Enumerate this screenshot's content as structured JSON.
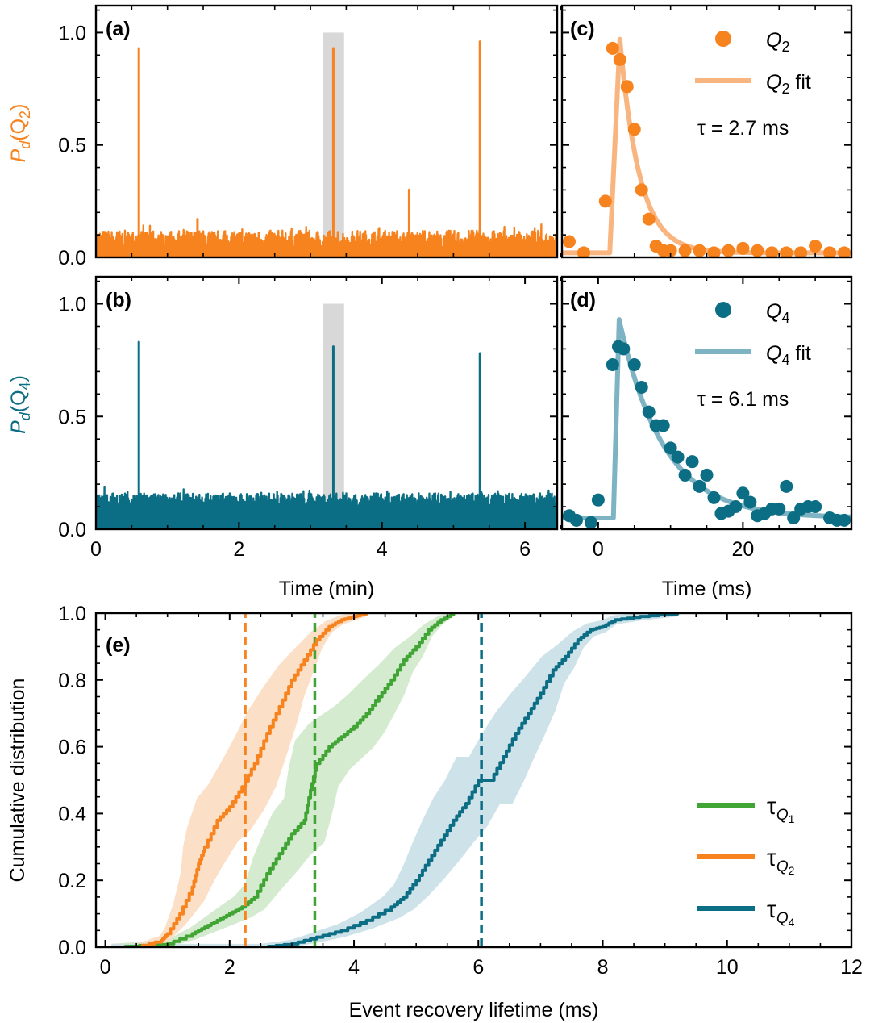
{
  "colors": {
    "orange": "#f7831f",
    "orange_fit": "#f9b57f",
    "orange_band": "#fcd9bd",
    "teal": "#0c6e84",
    "teal_fit": "#7eb3c3",
    "teal_band": "#c5dde5",
    "green": "#41a535",
    "green_band": "#cce8c7",
    "gray_band": "#d8d8d8",
    "axis": "#000000"
  },
  "chart_data": [
    {
      "id": "a",
      "type": "line",
      "panel_label": "(a)",
      "ylabel_main": "P",
      "ylabel_sub": "d",
      "ylabel_arg": "(Q",
      "ylabel_arg_sub": "2",
      "ylabel_close": ")",
      "xlim": [
        0,
        6.45
      ],
      "ylim": [
        0,
        1.12
      ],
      "yticks": [
        "0.0",
        "0.5",
        "1.0"
      ],
      "ytick_values": [
        0,
        0.5,
        1.0
      ],
      "baseline_level": [
        0.04,
        0.12
      ],
      "spikes": [
        [
          0.6,
          0.93
        ],
        [
          1.42,
          0.17
        ],
        [
          3.32,
          0.93
        ],
        [
          4.38,
          0.3
        ],
        [
          5.37,
          0.96
        ]
      ],
      "highlight_band": [
        3.17,
        3.47
      ]
    },
    {
      "id": "b",
      "type": "line",
      "panel_label": "(b)",
      "ylabel_main": "P",
      "ylabel_sub": "d",
      "ylabel_arg": "(Q",
      "ylabel_arg_sub": "4",
      "ylabel_close": ")",
      "xlim": [
        0,
        6.45
      ],
      "ylim": [
        0,
        1.12
      ],
      "xticks": [
        "0",
        "2",
        "4",
        "6"
      ],
      "xtick_values": [
        0,
        2,
        4,
        6
      ],
      "yticks": [
        "0.0",
        "0.5",
        "1.0"
      ],
      "ytick_values": [
        0,
        0.5,
        1.0
      ],
      "xlabel": "Time (min)",
      "baseline_level": [
        0.1,
        0.16
      ],
      "spikes": [
        [
          0.6,
          0.83
        ],
        [
          3.32,
          0.81
        ],
        [
          5.37,
          0.78
        ]
      ],
      "highlight_band": [
        3.17,
        3.47
      ]
    },
    {
      "id": "c",
      "type": "scatter",
      "panel_label": "(c)",
      "xlim": [
        -5,
        35
      ],
      "ylim": [
        0,
        1.12
      ],
      "legend_marker_label": "Q",
      "legend_marker_sub": "2",
      "legend_line_label": "Q",
      "legend_line_sub": "2",
      "legend_line_suffix": " fit",
      "tau_prefix": "τ = ",
      "tau_value": "2.7 ms",
      "points": [
        [
          -4,
          0.07
        ],
        [
          -2,
          0.02
        ],
        [
          1,
          0.25
        ],
        [
          2,
          0.93
        ],
        [
          3,
          0.88
        ],
        [
          4,
          0.76
        ],
        [
          5,
          0.57
        ],
        [
          6,
          0.3
        ],
        [
          7,
          0.17
        ],
        [
          8,
          0.05
        ],
        [
          9,
          0.03
        ],
        [
          10,
          0.03
        ],
        [
          12,
          0.03
        ],
        [
          14,
          0.03
        ],
        [
          16,
          0.02
        ],
        [
          18,
          0.03
        ],
        [
          20,
          0.04
        ],
        [
          22,
          0.03
        ],
        [
          24,
          0.02
        ],
        [
          26,
          0.02
        ],
        [
          28,
          0.02
        ],
        [
          30,
          0.05
        ],
        [
          32,
          0.02
        ],
        [
          34,
          0.02
        ]
      ],
      "fit": {
        "t0": 1.6,
        "peak_x": 3.0,
        "peak_y": 0.97,
        "tau": 2.7,
        "floor": 0.02
      }
    },
    {
      "id": "d",
      "type": "scatter",
      "panel_label": "(d)",
      "xlim": [
        -5,
        35
      ],
      "ylim": [
        0,
        1.12
      ],
      "xticks": [
        "0",
        "20"
      ],
      "xtick_values": [
        0,
        20
      ],
      "xlabel": "Time (ms)",
      "legend_marker_label": "Q",
      "legend_marker_sub": "4",
      "legend_line_label": "Q",
      "legend_line_sub": "4",
      "legend_line_suffix": " fit",
      "tau_prefix": "τ = ",
      "tau_value": "6.1 ms",
      "points": [
        [
          -4,
          0.06
        ],
        [
          -3,
          0.04
        ],
        [
          -1,
          0.03
        ],
        [
          0,
          0.13
        ],
        [
          2,
          0.73
        ],
        [
          2.8,
          0.81
        ],
        [
          3.5,
          0.8
        ],
        [
          5,
          0.73
        ],
        [
          6,
          0.63
        ],
        [
          7,
          0.52
        ],
        [
          8,
          0.46
        ],
        [
          9,
          0.46
        ],
        [
          10,
          0.36
        ],
        [
          11,
          0.32
        ],
        [
          12,
          0.24
        ],
        [
          13,
          0.3
        ],
        [
          14,
          0.19
        ],
        [
          15,
          0.24
        ],
        [
          16,
          0.14
        ],
        [
          17,
          0.07
        ],
        [
          18,
          0.08
        ],
        [
          19,
          0.1
        ],
        [
          20,
          0.16
        ],
        [
          21,
          0.12
        ],
        [
          22,
          0.06
        ],
        [
          23,
          0.07
        ],
        [
          24,
          0.09
        ],
        [
          25,
          0.09
        ],
        [
          26,
          0.19
        ],
        [
          27,
          0.05
        ],
        [
          28,
          0.09
        ],
        [
          29,
          0.1
        ],
        [
          30,
          0.1
        ],
        [
          32,
          0.05
        ],
        [
          33,
          0.04
        ],
        [
          34,
          0.04
        ]
      ],
      "fit": {
        "t0": 2.1,
        "peak_x": 2.9,
        "peak_y": 0.93,
        "tau": 6.1,
        "floor": 0.05
      }
    },
    {
      "id": "e",
      "type": "line",
      "panel_label": "(e)",
      "xlabel": "Event recovery lifetime (ms)",
      "ylabel": "Cumulative distribution",
      "xlim": [
        -0.15,
        12
      ],
      "ylim": [
        0,
        1.0
      ],
      "xticks": [
        "0",
        "2",
        "4",
        "6",
        "8",
        "10",
        "12"
      ],
      "xtick_values": [
        0,
        2,
        4,
        6,
        8,
        10,
        12
      ],
      "yticks": [
        "0.0",
        "0.2",
        "0.4",
        "0.6",
        "0.8",
        "1.0"
      ],
      "ytick_values": [
        0,
        0.2,
        0.4,
        0.6,
        0.8,
        1.0
      ],
      "series": [
        {
          "name": "τ",
          "sub": "Q",
          "subsub": "1",
          "color_key": "green",
          "band_key": "green_band",
          "median": 3.37,
          "x": [
            0.1,
            1.0,
            1.4,
            1.6,
            1.8,
            2.0,
            2.2,
            2.4,
            2.6,
            2.8,
            3.0,
            3.2,
            3.3,
            3.4,
            3.6,
            3.8,
            4.0,
            4.2,
            4.4,
            4.6,
            4.8,
            5.0,
            5.2,
            5.4,
            5.6
          ],
          "y": [
            0,
            0.01,
            0.04,
            0.06,
            0.08,
            0.1,
            0.12,
            0.15,
            0.22,
            0.28,
            0.34,
            0.38,
            0.47,
            0.55,
            0.6,
            0.63,
            0.66,
            0.7,
            0.75,
            0.8,
            0.86,
            0.9,
            0.95,
            0.98,
            1.0
          ]
        },
        {
          "name": "τ",
          "sub": "Q",
          "subsub": "2",
          "color_key": "orange",
          "band_key": "orange_band",
          "median": 2.25,
          "x": [
            0.1,
            0.5,
            0.9,
            1.0,
            1.2,
            1.4,
            1.5,
            1.6,
            1.8,
            2.0,
            2.2,
            2.4,
            2.6,
            2.8,
            3.0,
            3.2,
            3.4,
            3.6,
            3.8,
            4.0,
            4.2
          ],
          "y": [
            0,
            0,
            0.02,
            0.04,
            0.1,
            0.18,
            0.25,
            0.3,
            0.38,
            0.42,
            0.48,
            0.55,
            0.64,
            0.72,
            0.8,
            0.86,
            0.92,
            0.96,
            0.98,
            0.99,
            1.0
          ]
        },
        {
          "name": "τ",
          "sub": "Q",
          "subsub": "4",
          "color_key": "teal",
          "band_key": "teal_band",
          "median": 6.05,
          "x": [
            0.1,
            2.5,
            3.0,
            3.4,
            3.8,
            4.2,
            4.6,
            4.8,
            5.0,
            5.2,
            5.4,
            5.6,
            5.8,
            6.0,
            6.2,
            6.4,
            6.6,
            6.8,
            7.0,
            7.2,
            7.4,
            7.6,
            7.8,
            8.0,
            8.2,
            8.6,
            9.2
          ],
          "y": [
            0,
            0,
            0.01,
            0.03,
            0.05,
            0.08,
            0.12,
            0.15,
            0.2,
            0.26,
            0.32,
            0.38,
            0.43,
            0.5,
            0.5,
            0.57,
            0.64,
            0.7,
            0.76,
            0.83,
            0.87,
            0.92,
            0.95,
            0.96,
            0.98,
            0.99,
            1.0
          ]
        }
      ]
    }
  ]
}
